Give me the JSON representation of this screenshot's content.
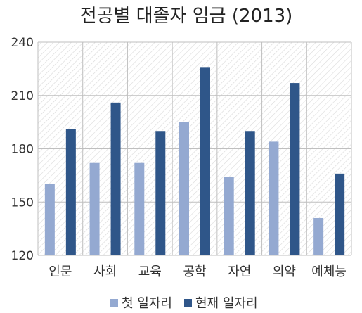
{
  "chart_data": {
    "type": "bar",
    "title": "전공별 대졸자 임금 (2013)",
    "xlabel": "",
    "ylabel": "",
    "ylim": [
      120,
      240
    ],
    "yticks": [
      120,
      150,
      180,
      210,
      240
    ],
    "grid": true,
    "legend_position": "bottom",
    "categories": [
      "인문",
      "사회",
      "교육",
      "공학",
      "자연",
      "의약",
      "예체능"
    ],
    "series": [
      {
        "name": "첫 일자리",
        "color": "#94a9d1",
        "values": [
          160,
          172,
          172,
          195,
          164,
          184,
          141
        ]
      },
      {
        "name": "현재 일자리",
        "color": "#2f5689",
        "values": [
          191,
          206,
          190,
          226,
          190,
          217,
          166
        ]
      }
    ]
  }
}
